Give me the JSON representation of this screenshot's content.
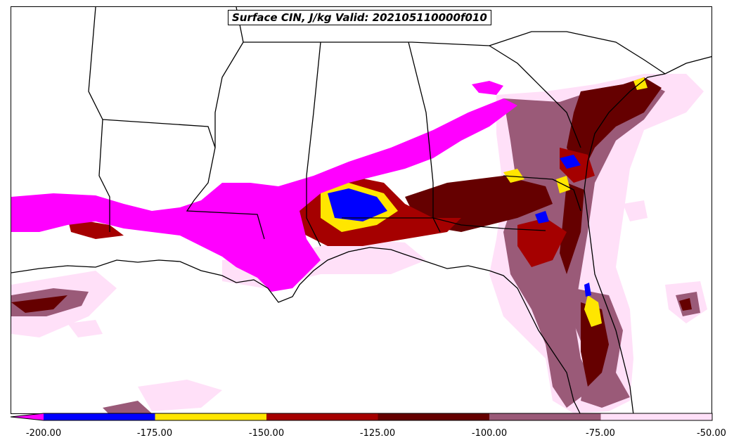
{
  "title": "Surface CIN, J/kg Valid: 202105110000f010",
  "colorbar": {
    "extend": "min",
    "under_color": "#ff00ff",
    "bins": [
      {
        "from": -200,
        "to": -175,
        "color": "#0000ff"
      },
      {
        "from": -175,
        "to": -150,
        "color": "#ffe600"
      },
      {
        "from": -150,
        "to": -125,
        "color": "#a50000"
      },
      {
        "from": -125,
        "to": -100,
        "color": "#650000"
      },
      {
        "from": -100,
        "to": -75,
        "color": "#9a5a78"
      },
      {
        "from": -75,
        "to": -50,
        "color": "#ffe0f8"
      }
    ],
    "ticks": [
      "-200.00",
      "-175.00",
      "-150.00",
      "-125.00",
      "-100.00",
      "-75.00",
      "-50.00"
    ]
  },
  "colors": {
    "light": "#ffe0f8",
    "mauve": "#9a5a78",
    "darkred": "#650000",
    "red": "#a50000",
    "yellow": "#ffe600",
    "blue": "#0000ff",
    "magenta": "#ff00ff",
    "border": "#000000"
  }
}
